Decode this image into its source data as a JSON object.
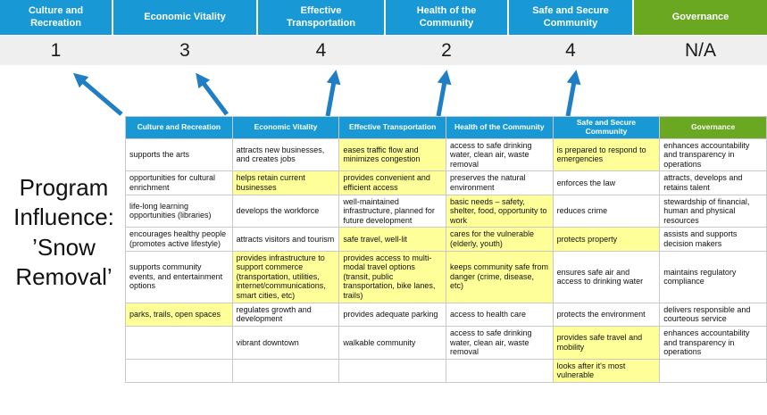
{
  "banner": {
    "columns": [
      {
        "label": "Culture and Recreation",
        "score": "1",
        "color": "blue"
      },
      {
        "label": "Economic Vitality",
        "score": "3",
        "color": "blue"
      },
      {
        "label": "Effective Transportation",
        "score": "4",
        "color": "blue"
      },
      {
        "label": "Health of the Community",
        "score": "2",
        "color": "blue"
      },
      {
        "label": "Safe and Secure Community",
        "score": "4",
        "color": "blue"
      },
      {
        "label": "Governance",
        "score": "N/A",
        "color": "green"
      }
    ]
  },
  "program_title": "Program Influence: ’Snow Removal’",
  "table": {
    "headers": [
      {
        "label": "Culture and Recreation",
        "color": "blue"
      },
      {
        "label": "Economic Vitality",
        "color": "blue"
      },
      {
        "label": "Effective Transportation",
        "color": "blue"
      },
      {
        "label": "Health of the Community",
        "color": "blue"
      },
      {
        "label": "Safe and Secure Community",
        "color": "blue"
      },
      {
        "label": "Governance",
        "color": "green"
      }
    ],
    "rows": [
      [
        {
          "text": "supports the arts",
          "highlight": false
        },
        {
          "text": "attracts new businesses, and creates jobs",
          "highlight": false
        },
        {
          "text": "eases traffic flow and minimizes congestion",
          "highlight": true
        },
        {
          "text": "access to safe drinking water, clean air, waste removal",
          "highlight": false
        },
        {
          "text": "is prepared to respond to emergencies",
          "highlight": true
        },
        {
          "text": "enhances accountability and transparency in operations",
          "highlight": false
        }
      ],
      [
        {
          "text": "opportunities for cultural enrichment",
          "highlight": false
        },
        {
          "text": "helps retain current businesses",
          "highlight": true
        },
        {
          "text": "provides convenient and efficient access",
          "highlight": true
        },
        {
          "text": "preserves the natural environment",
          "highlight": false
        },
        {
          "text": "enforces the law",
          "highlight": false
        },
        {
          "text": "attracts, develops and retains talent",
          "highlight": false
        }
      ],
      [
        {
          "text": "life-long learning opportunities (libraries)",
          "highlight": false
        },
        {
          "text": "develops the workforce",
          "highlight": false
        },
        {
          "text": "well-maintained infrastructure, planned for future development",
          "highlight": false
        },
        {
          "text": "basic needs – safety, shelter, food, opportunity to work",
          "highlight": true
        },
        {
          "text": "reduces crime",
          "highlight": false
        },
        {
          "text": "stewardship of financial, human and physical resources",
          "highlight": false
        }
      ],
      [
        {
          "text": "encourages healthy people (promotes active lifestyle)",
          "highlight": false
        },
        {
          "text": "attracts visitors and tourism",
          "highlight": false
        },
        {
          "text": "safe travel, well-lit",
          "highlight": true
        },
        {
          "text": "cares for the vulnerable (elderly, youth)",
          "highlight": true
        },
        {
          "text": "protects property",
          "highlight": true
        },
        {
          "text": "assists and supports decision makers",
          "highlight": false
        }
      ],
      [
        {
          "text": "supports community events, and entertainment options",
          "highlight": false
        },
        {
          "text": "provides infrastructure to support commerce (transportation, utilities, internet/communications, smart cities, etc)",
          "highlight": true
        },
        {
          "text": "provides access to multi-modal travel options (transit, public transportation, bike lanes, trails)",
          "highlight": true
        },
        {
          "text": "keeps community safe from danger (crime, disease, etc)",
          "highlight": true
        },
        {
          "text": "ensures safe air and access to drinking water",
          "highlight": false
        },
        {
          "text": "maintains regulatory compliance",
          "highlight": false
        }
      ],
      [
        {
          "text": "parks, trails, open spaces",
          "highlight": true
        },
        {
          "text": "regulates growth and development",
          "highlight": false
        },
        {
          "text": "provides adequate parking",
          "highlight": false
        },
        {
          "text": "access to health care",
          "highlight": false
        },
        {
          "text": "protects the environment",
          "highlight": false
        },
        {
          "text": "delivers responsible and courteous service",
          "highlight": false
        }
      ],
      [
        {
          "text": "",
          "highlight": false
        },
        {
          "text": "vibrant downtown",
          "highlight": false
        },
        {
          "text": "walkable community",
          "highlight": false
        },
        {
          "text": "access to safe drinking water, clean air, waste removal",
          "highlight": false
        },
        {
          "text": "provides safe travel and mobility",
          "highlight": true
        },
        {
          "text": "enhances accountability and transparency in operations",
          "highlight": false
        }
      ],
      [
        {
          "text": "",
          "highlight": false
        },
        {
          "text": "",
          "highlight": false
        },
        {
          "text": "",
          "highlight": false
        },
        {
          "text": "",
          "highlight": false
        },
        {
          "text": "looks after it's most vulnerable",
          "highlight": true
        },
        {
          "text": "",
          "highlight": false
        }
      ]
    ]
  },
  "colors": {
    "blue": "#1899D6",
    "green": "#69A820",
    "yellow": "#FFFF99",
    "scorebg": "#EFEFEF",
    "border": "#C9C9C9",
    "arrow": "#1F7EC4"
  }
}
